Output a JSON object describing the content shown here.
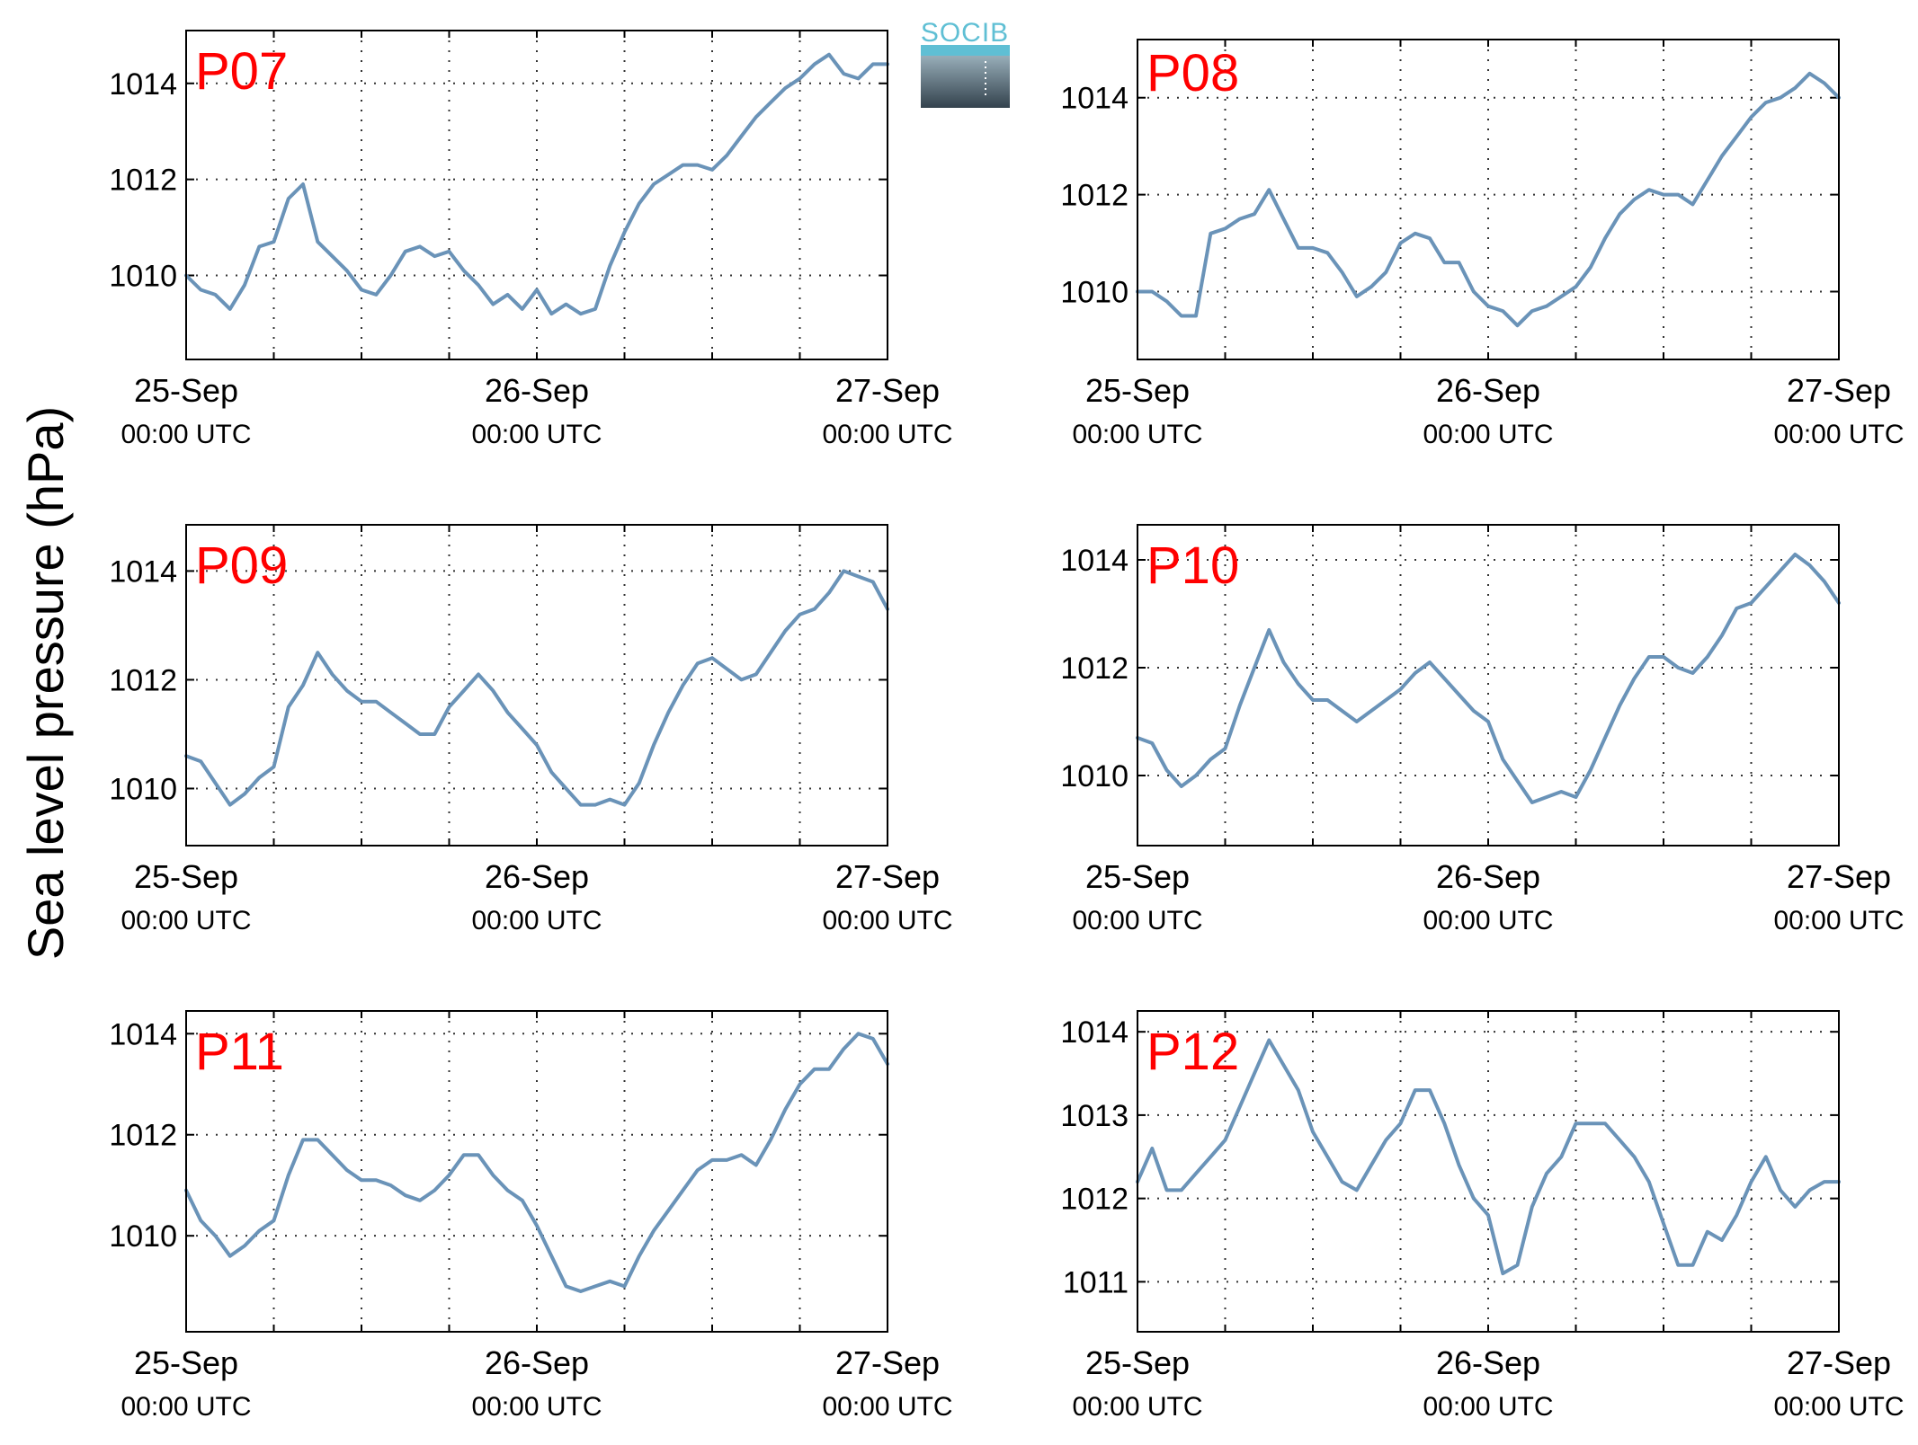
{
  "figure": {
    "ylabel": "Sea level pressure (hPa)",
    "logo_text": "SOCIB"
  },
  "style": {
    "line_color": "#6a93b8",
    "panel_label_color": "#ff0000",
    "grid_color": "#333333",
    "logo_top_color": "#5fbfd4",
    "logo_bottom_color": "#33424d"
  },
  "chart_data": [
    {
      "type": "line",
      "panel_label": "P07",
      "x_ticks": [
        {
          "x": 0,
          "date": "25-Sep",
          "time": "00:00 UTC"
        },
        {
          "x": 24,
          "date": "26-Sep",
          "time": "00:00 UTC"
        },
        {
          "x": 48,
          "date": "27-Sep",
          "time": "00:00 UTC"
        }
      ],
      "xlim": [
        0,
        48
      ],
      "ylim": [
        1008.25,
        1015.1
      ],
      "y_ticks": [
        1010,
        1012,
        1014
      ],
      "grid": true,
      "x": [
        0,
        1,
        2,
        3,
        4,
        5,
        6,
        7,
        8,
        9,
        10,
        11,
        12,
        13,
        14,
        15,
        16,
        17,
        18,
        19,
        20,
        21,
        22,
        23,
        24,
        25,
        26,
        27,
        28,
        29,
        30,
        31,
        32,
        33,
        34,
        35,
        36,
        37,
        38,
        39,
        40,
        41,
        42,
        43,
        44,
        45,
        46,
        47,
        48
      ],
      "values": [
        1010.0,
        1009.7,
        1009.6,
        1009.3,
        1009.8,
        1010.6,
        1010.7,
        1011.6,
        1011.9,
        1010.7,
        1010.4,
        1010.1,
        1009.7,
        1009.6,
        1010.0,
        1010.5,
        1010.6,
        1010.4,
        1010.5,
        1010.1,
        1009.8,
        1009.4,
        1009.6,
        1009.3,
        1009.7,
        1009.2,
        1009.4,
        1009.2,
        1009.3,
        1010.2,
        1010.9,
        1011.5,
        1011.9,
        1012.1,
        1012.3,
        1012.3,
        1012.2,
        1012.5,
        1012.9,
        1013.3,
        1013.6,
        1013.9,
        1014.1,
        1014.4,
        1014.6,
        1014.2,
        1014.1,
        1014.4,
        1014.4
      ]
    },
    {
      "type": "line",
      "panel_label": "P08",
      "x_ticks": [
        {
          "x": 0,
          "date": "25-Sep",
          "time": "00:00 UTC"
        },
        {
          "x": 24,
          "date": "26-Sep",
          "time": "00:00 UTC"
        },
        {
          "x": 48,
          "date": "27-Sep",
          "time": "00:00 UTC"
        }
      ],
      "xlim": [
        0,
        48
      ],
      "ylim": [
        1008.6,
        1015.2
      ],
      "y_ticks": [
        1010,
        1012,
        1014
      ],
      "grid": true,
      "x": [
        0,
        1,
        2,
        3,
        4,
        5,
        6,
        7,
        8,
        9,
        10,
        11,
        12,
        13,
        14,
        15,
        16,
        17,
        18,
        19,
        20,
        21,
        22,
        23,
        24,
        25,
        26,
        27,
        28,
        29,
        30,
        31,
        32,
        33,
        34,
        35,
        36,
        37,
        38,
        39,
        40,
        41,
        42,
        43,
        44,
        45,
        46,
        47,
        48
      ],
      "values": [
        1010.0,
        1010.0,
        1009.8,
        1009.5,
        1009.5,
        1011.2,
        1011.3,
        1011.5,
        1011.6,
        1012.1,
        1011.5,
        1010.9,
        1010.9,
        1010.8,
        1010.4,
        1009.9,
        1010.1,
        1010.4,
        1011.0,
        1011.2,
        1011.1,
        1010.6,
        1010.6,
        1010.0,
        1009.7,
        1009.6,
        1009.3,
        1009.6,
        1009.7,
        1009.9,
        1010.1,
        1010.5,
        1011.1,
        1011.6,
        1011.9,
        1012.1,
        1012.0,
        1012.0,
        1011.8,
        1012.3,
        1012.8,
        1013.2,
        1013.6,
        1013.9,
        1014.0,
        1014.2,
        1014.5,
        1014.3,
        1014.0
      ]
    },
    {
      "type": "line",
      "panel_label": "P09",
      "x_ticks": [
        {
          "x": 0,
          "date": "25-Sep",
          "time": "00:00 UTC"
        },
        {
          "x": 24,
          "date": "26-Sep",
          "time": "00:00 UTC"
        },
        {
          "x": 48,
          "date": "27-Sep",
          "time": "00:00 UTC"
        }
      ],
      "xlim": [
        0,
        48
      ],
      "ylim": [
        1008.95,
        1014.85
      ],
      "y_ticks": [
        1010,
        1012,
        1014
      ],
      "grid": true,
      "x": [
        0,
        1,
        2,
        3,
        4,
        5,
        6,
        7,
        8,
        9,
        10,
        11,
        12,
        13,
        14,
        15,
        16,
        17,
        18,
        19,
        20,
        21,
        22,
        23,
        24,
        25,
        26,
        27,
        28,
        29,
        30,
        31,
        32,
        33,
        34,
        35,
        36,
        37,
        38,
        39,
        40,
        41,
        42,
        43,
        44,
        45,
        46,
        47,
        48
      ],
      "values": [
        1010.6,
        1010.5,
        1010.1,
        1009.7,
        1009.9,
        1010.2,
        1010.4,
        1011.5,
        1011.9,
        1012.5,
        1012.1,
        1011.8,
        1011.6,
        1011.6,
        1011.4,
        1011.2,
        1011.0,
        1011.0,
        1011.5,
        1011.8,
        1012.1,
        1011.8,
        1011.4,
        1011.1,
        1010.8,
        1010.3,
        1010.0,
        1009.7,
        1009.7,
        1009.8,
        1009.7,
        1010.1,
        1010.8,
        1011.4,
        1011.9,
        1012.3,
        1012.4,
        1012.2,
        1012.0,
        1012.1,
        1012.5,
        1012.9,
        1013.2,
        1013.3,
        1013.6,
        1014.0,
        1013.9,
        1013.8,
        1013.3
      ]
    },
    {
      "type": "line",
      "panel_label": "P10",
      "x_ticks": [
        {
          "x": 0,
          "date": "25-Sep",
          "time": "00:00 UTC"
        },
        {
          "x": 24,
          "date": "26-Sep",
          "time": "00:00 UTC"
        },
        {
          "x": 48,
          "date": "27-Sep",
          "time": "00:00 UTC"
        }
      ],
      "xlim": [
        0,
        48
      ],
      "ylim": [
        1008.7,
        1014.65
      ],
      "y_ticks": [
        1010,
        1012,
        1014
      ],
      "grid": true,
      "x": [
        0,
        1,
        2,
        3,
        4,
        5,
        6,
        7,
        8,
        9,
        10,
        11,
        12,
        13,
        14,
        15,
        16,
        17,
        18,
        19,
        20,
        21,
        22,
        23,
        24,
        25,
        26,
        27,
        28,
        29,
        30,
        31,
        32,
        33,
        34,
        35,
        36,
        37,
        38,
        39,
        40,
        41,
        42,
        43,
        44,
        45,
        46,
        47,
        48
      ],
      "values": [
        1010.7,
        1010.6,
        1010.1,
        1009.8,
        1010.0,
        1010.3,
        1010.5,
        1011.3,
        1012.0,
        1012.7,
        1012.1,
        1011.7,
        1011.4,
        1011.4,
        1011.2,
        1011.0,
        1011.2,
        1011.4,
        1011.6,
        1011.9,
        1012.1,
        1011.8,
        1011.5,
        1011.2,
        1011.0,
        1010.3,
        1009.9,
        1009.5,
        1009.6,
        1009.7,
        1009.6,
        1010.1,
        1010.7,
        1011.3,
        1011.8,
        1012.2,
        1012.2,
        1012.0,
        1011.9,
        1012.2,
        1012.6,
        1013.1,
        1013.2,
        1013.5,
        1013.8,
        1014.1,
        1013.9,
        1013.6,
        1013.2
      ]
    },
    {
      "type": "line",
      "panel_label": "P11",
      "x_ticks": [
        {
          "x": 0,
          "date": "25-Sep",
          "time": "00:00 UTC"
        },
        {
          "x": 24,
          "date": "26-Sep",
          "time": "00:00 UTC"
        },
        {
          "x": 48,
          "date": "27-Sep",
          "time": "00:00 UTC"
        }
      ],
      "xlim": [
        0,
        48
      ],
      "ylim": [
        1008.1,
        1014.45
      ],
      "y_ticks": [
        1010,
        1012,
        1014
      ],
      "grid": true,
      "x": [
        0,
        1,
        2,
        3,
        4,
        5,
        6,
        7,
        8,
        9,
        10,
        11,
        12,
        13,
        14,
        15,
        16,
        17,
        18,
        19,
        20,
        21,
        22,
        23,
        24,
        25,
        26,
        27,
        28,
        29,
        30,
        31,
        32,
        33,
        34,
        35,
        36,
        37,
        38,
        39,
        40,
        41,
        42,
        43,
        44,
        45,
        46,
        47,
        48
      ],
      "values": [
        1010.9,
        1010.3,
        1010.0,
        1009.6,
        1009.8,
        1010.1,
        1010.3,
        1011.2,
        1011.9,
        1011.9,
        1011.6,
        1011.3,
        1011.1,
        1011.1,
        1011.0,
        1010.8,
        1010.7,
        1010.9,
        1011.2,
        1011.6,
        1011.6,
        1011.2,
        1010.9,
        1010.7,
        1010.2,
        1009.6,
        1009.0,
        1008.9,
        1009.0,
        1009.1,
        1009.0,
        1009.6,
        1010.1,
        1010.5,
        1010.9,
        1011.3,
        1011.5,
        1011.5,
        1011.6,
        1011.4,
        1011.9,
        1012.5,
        1013.0,
        1013.3,
        1013.3,
        1013.7,
        1014.0,
        1013.9,
        1013.4
      ]
    },
    {
      "type": "line",
      "panel_label": "P12",
      "x_ticks": [
        {
          "x": 0,
          "date": "25-Sep",
          "time": "00:00 UTC"
        },
        {
          "x": 24,
          "date": "26-Sep",
          "time": "00:00 UTC"
        },
        {
          "x": 48,
          "date": "27-Sep",
          "time": "00:00 UTC"
        }
      ],
      "xlim": [
        0,
        48
      ],
      "ylim": [
        1010.4,
        1014.25
      ],
      "y_ticks": [
        1011,
        1012,
        1013,
        1014
      ],
      "grid": true,
      "x": [
        0,
        1,
        2,
        3,
        4,
        5,
        6,
        7,
        8,
        9,
        10,
        11,
        12,
        13,
        14,
        15,
        16,
        17,
        18,
        19,
        20,
        21,
        22,
        23,
        24,
        25,
        26,
        27,
        28,
        29,
        30,
        31,
        32,
        33,
        34,
        35,
        36,
        37,
        38,
        39,
        40,
        41,
        42,
        43,
        44,
        45,
        46,
        47,
        48
      ],
      "values": [
        1012.2,
        1012.6,
        1012.1,
        1012.1,
        1012.3,
        1012.5,
        1012.7,
        1013.1,
        1013.5,
        1013.9,
        1013.6,
        1013.3,
        1012.8,
        1012.5,
        1012.2,
        1012.1,
        1012.4,
        1012.7,
        1012.9,
        1013.3,
        1013.3,
        1012.9,
        1012.4,
        1012.0,
        1011.8,
        1011.1,
        1011.2,
        1011.9,
        1012.3,
        1012.5,
        1012.9,
        1012.9,
        1012.9,
        1012.7,
        1012.5,
        1012.2,
        1011.7,
        1011.2,
        1011.2,
        1011.6,
        1011.5,
        1011.8,
        1012.2,
        1012.5,
        1012.1,
        1011.9,
        1012.1,
        1012.2,
        1012.2
      ]
    }
  ]
}
